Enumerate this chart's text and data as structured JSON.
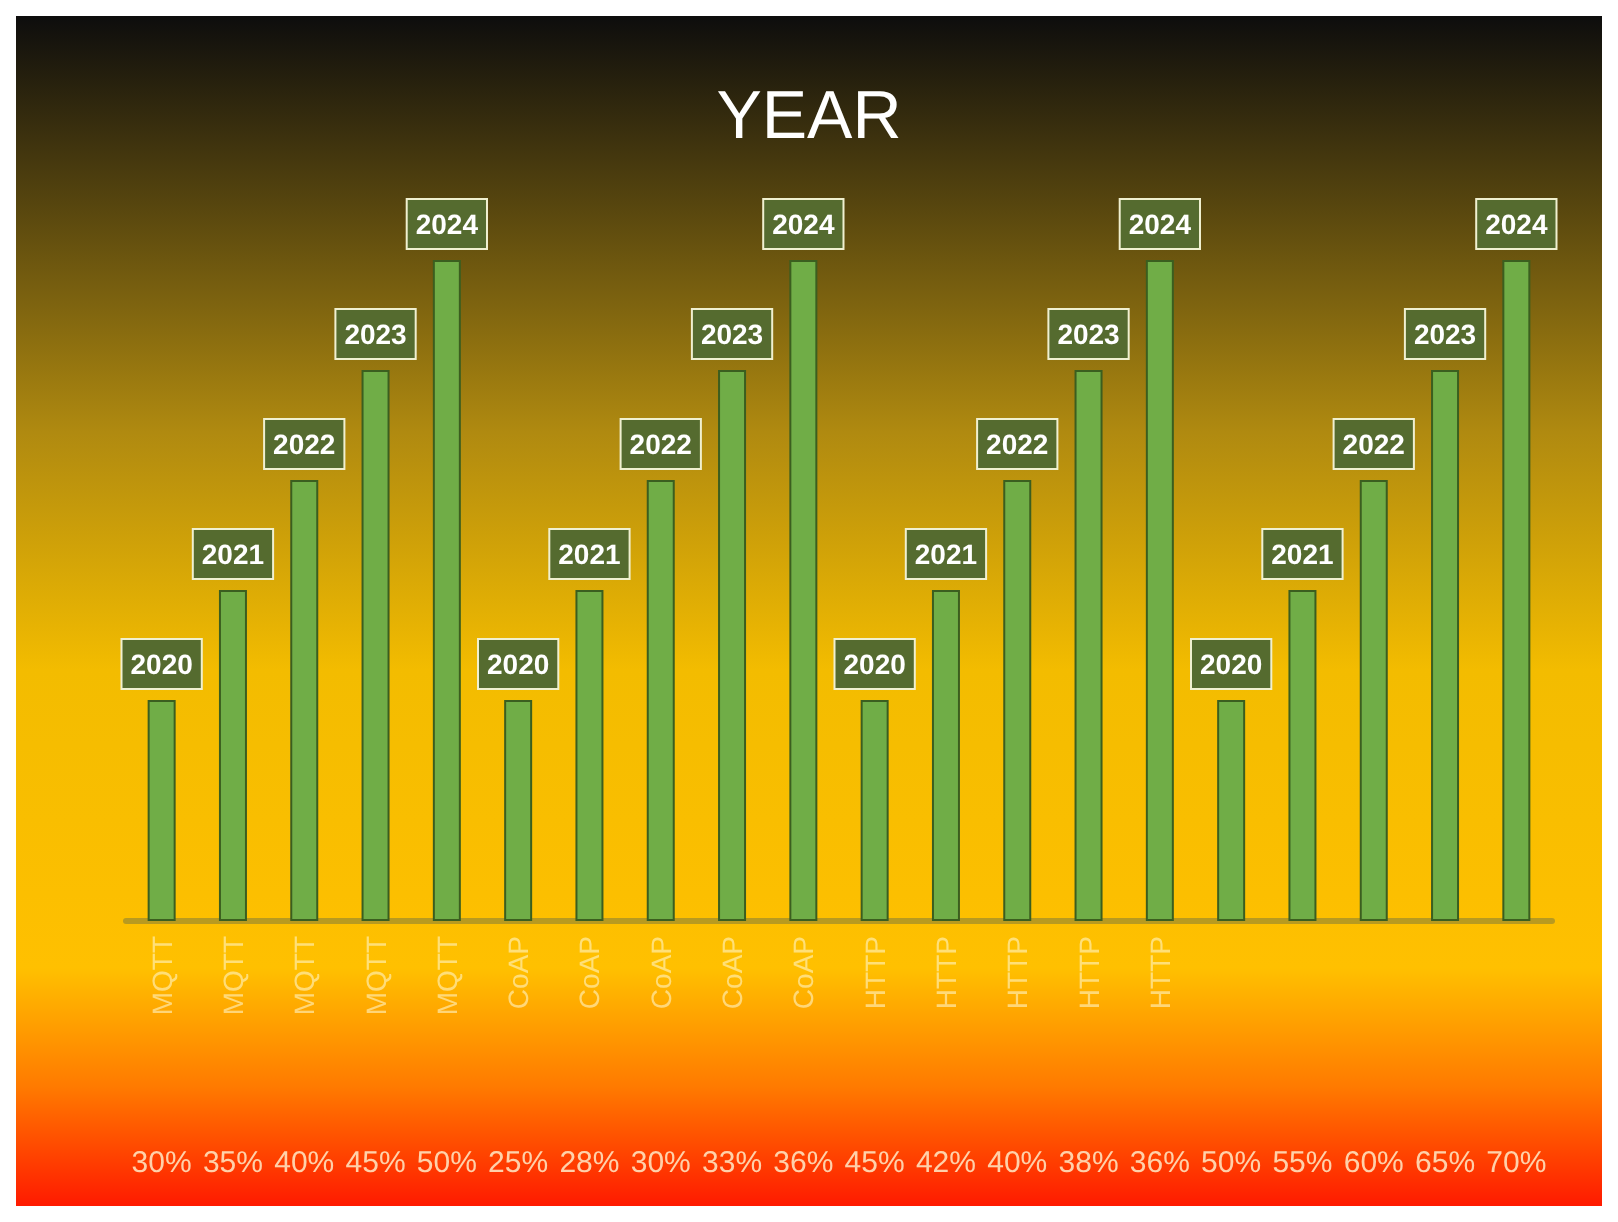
{
  "chart_data": {
    "type": "bar",
    "title": "YEAR",
    "categories": [
      "MQTT",
      "MQTT",
      "MQTT",
      "MQTT",
      "MQTT",
      "CoAP",
      "CoAP",
      "CoAP",
      "CoAP",
      "CoAP",
      "HTTP",
      "HTTP",
      "HTTP",
      "HTTP",
      "HTTP",
      null,
      null,
      null,
      null,
      null
    ],
    "values": [
      2020,
      2021,
      2022,
      2023,
      2024,
      2020,
      2021,
      2022,
      2023,
      2024,
      2020,
      2021,
      2022,
      2023,
      2024,
      2020,
      2021,
      2022,
      2023,
      2024
    ],
    "color": "#70ad47",
    "ylim": [
      2018,
      2024
    ],
    "data_labels": true,
    "annotations": [
      "30%",
      "35%",
      "40%",
      "45%",
      "50%",
      "25%",
      "28%",
      "30%",
      "33%",
      "36%",
      "45%",
      "42%",
      "40%",
      "38%",
      "36%",
      "50%",
      "55%",
      "60%",
      "65%",
      "70%"
    ]
  }
}
